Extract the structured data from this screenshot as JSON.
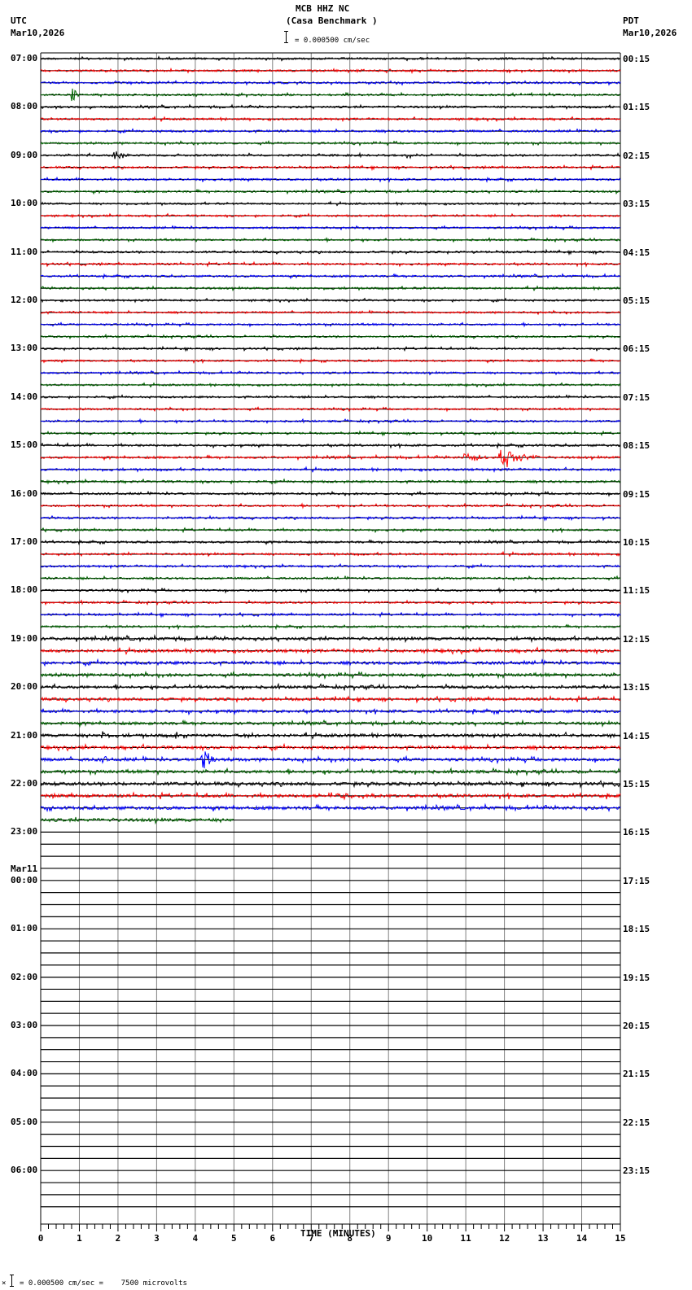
{
  "header": {
    "station": "MCB HHZ NC",
    "location": "(Casa Benchmark )",
    "left_tz": "UTC",
    "left_date": "Mar10,2026",
    "right_tz": "PDT",
    "right_date": "Mar10,2026",
    "scale_label": "= 0.000500 cm/sec"
  },
  "footer": {
    "scale_note": "= 0.000500 cm/sec =    7500 microvolts",
    "prefix_glyph": "×"
  },
  "colors": {
    "trace_cycle": [
      "#000000",
      "#ff0000",
      "#0000ff",
      "#006400"
    ],
    "grid_minor": "#808080",
    "row_line": "#000000"
  },
  "chart_data": {
    "type": "line",
    "title": "MCB HHZ NC (Casa Benchmark )",
    "subtitle": "= 0.000500 cm/sec",
    "xlabel": "TIME (MINUTES)",
    "ylabel": "",
    "xlim": [
      0,
      15
    ],
    "x_ticks": [
      "0",
      "1",
      "2",
      "3",
      "4",
      "5",
      "6",
      "7",
      "8",
      "9",
      "10",
      "11",
      "12",
      "13",
      "14",
      "15"
    ],
    "minor_ticks_per_minute": 5,
    "grid": true,
    "rows_per_hour": 4,
    "utc_labels": [
      "07:00",
      "08:00",
      "09:00",
      "10:00",
      "11:00",
      "12:00",
      "13:00",
      "14:00",
      "15:00",
      "16:00",
      "17:00",
      "18:00",
      "19:00",
      "20:00",
      "21:00",
      "22:00",
      "23:00",
      "00:00",
      "01:00",
      "02:00",
      "03:00",
      "04:00",
      "05:00",
      "06:00"
    ],
    "utc_date_change": {
      "index": 17,
      "label": "Mar11"
    },
    "pdt_labels": [
      "00:15",
      "01:15",
      "02:15",
      "03:15",
      "04:15",
      "05:15",
      "06:15",
      "07:15",
      "08:15",
      "09:15",
      "10:15",
      "11:15",
      "12:15",
      "13:15",
      "14:15",
      "15:15",
      "16:15",
      "17:15",
      "18:15",
      "19:15",
      "20:15",
      "21:15",
      "22:15",
      "23:15"
    ],
    "total_rows": 96,
    "data_rows": 64,
    "last_row_end_minute": 5.0,
    "noise_amplitude_by_hour": [
      1.2,
      1.2,
      1.2,
      1.1,
      1.2,
      1.1,
      1.1,
      1.1,
      1.3,
      1.2,
      1.2,
      1.2,
      1.8,
      1.7,
      1.8,
      1.9
    ],
    "events": [
      {
        "row": 3,
        "minute": 0.85,
        "amplitude": 9,
        "duration": 0.15,
        "color": "green",
        "label": "07:45 spike"
      },
      {
        "row": 8,
        "minute": 1.9,
        "amplitude": 6,
        "duration": 0.6,
        "color": "black",
        "label": "09:00 event"
      },
      {
        "row": 8,
        "minute": 9.5,
        "amplitude": 3,
        "duration": 0.4,
        "color": "black",
        "label": "09:00 small event"
      },
      {
        "row": 33,
        "minute": 11.0,
        "amplitude": 6,
        "duration": 0.7,
        "color": "red",
        "label": "15:15 event P"
      },
      {
        "row": 33,
        "minute": 11.9,
        "amplitude": 12,
        "duration": 1.0,
        "color": "red",
        "label": "15:15 event main"
      },
      {
        "row": 56,
        "minute": 1.6,
        "amplitude": 5,
        "duration": 0.2,
        "color": "black",
        "label": "21:00 spike"
      },
      {
        "row": 56,
        "minute": 3.5,
        "amplitude": 4,
        "duration": 0.1,
        "color": "black",
        "label": "21:00 spike 2"
      },
      {
        "row": 56,
        "minute": 5.5,
        "amplitude": 3,
        "duration": 0.1,
        "color": "black",
        "label": "21:00 spike 3"
      },
      {
        "row": 58,
        "minute": 1.65,
        "amplitude": 4,
        "duration": 0.2,
        "color": "blue",
        "label": "21:30 spike"
      },
      {
        "row": 58,
        "minute": 4.2,
        "amplitude": 12,
        "duration": 0.4,
        "color": "blue",
        "label": "21:30 event"
      },
      {
        "row": 60,
        "minute": 11.8,
        "amplitude": 3,
        "duration": 0.4,
        "color": "black",
        "label": "22:00 small event"
      },
      {
        "row": 61,
        "minute": 7.5,
        "amplitude": 3,
        "duration": 1.5,
        "color": "red",
        "label": "22:15 noise burst"
      }
    ]
  }
}
